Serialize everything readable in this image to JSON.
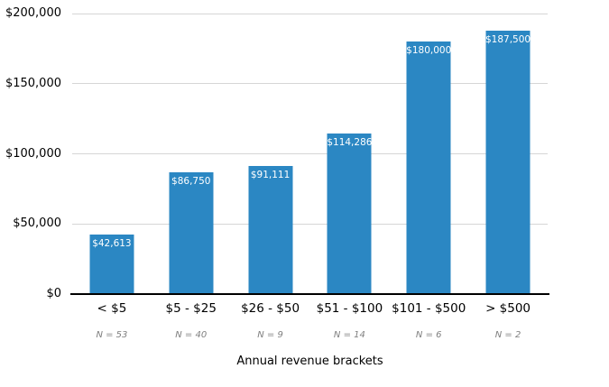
{
  "chart_data": {
    "type": "bar",
    "title": "",
    "xlabel": "Annual revenue brackets",
    "ylabel": "",
    "categories": [
      "< $5",
      "$5 - $25",
      "$26 - $50",
      "$51 - $100",
      "$101 - $500",
      "> $500"
    ],
    "values": [
      42613,
      86750,
      91111,
      114286,
      180000,
      187500
    ],
    "value_labels": [
      "$42,613",
      "$86,750",
      "$91,111",
      "$114,286",
      "$180,000",
      "$187,500"
    ],
    "n_labels": [
      "N = 53",
      "N = 40",
      "N = 9",
      "N = 14",
      "N = 6",
      "N = 2"
    ],
    "y_ticks": [
      0,
      50000,
      100000,
      150000,
      200000
    ],
    "y_tick_labels": [
      "$0",
      "$50,000",
      "$100,000",
      "$150,000",
      "$200,000"
    ],
    "ylim": [
      0,
      200000
    ],
    "grid": "horizontal-gridlines-on",
    "legend": "none",
    "colors": {
      "bar": "#2b87c3",
      "bar_value_label": "#ffffff",
      "gridline": "#d6d6d6",
      "axis_line": "#000000",
      "tick_label": "#000000",
      "n_label": "#7f7f7f"
    }
  }
}
